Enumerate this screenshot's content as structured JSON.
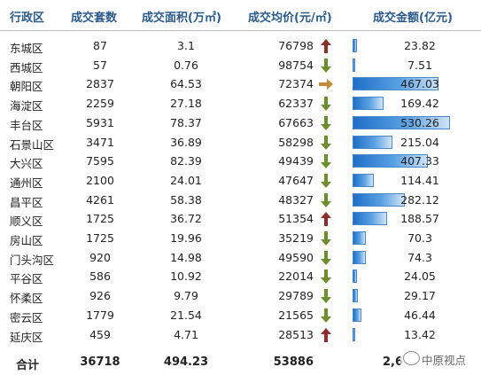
{
  "header": {
    "district": "行政区",
    "count": "成交套数",
    "area": "成交面积(万㎡)",
    "price": "成交均价(元/㎡)",
    "amount": "成交金额(亿元)"
  },
  "colors": {
    "up": "#8b2f2f",
    "down": "#6b8e2e",
    "flat": "#c68a3a",
    "bar": "#1f6fc7"
  },
  "scale_max_amount": 600,
  "rows": [
    {
      "district": "东城区",
      "count": "87",
      "area": "3.1",
      "price": "76798",
      "trend": "up",
      "amount": "23.82"
    },
    {
      "district": "西城区",
      "count": "57",
      "area": "0.76",
      "price": "98754",
      "trend": "down",
      "amount": "7.51"
    },
    {
      "district": "朝阳区",
      "count": "2837",
      "area": "64.53",
      "price": "72374",
      "trend": "flat",
      "amount": "467.03"
    },
    {
      "district": "海淀区",
      "count": "2259",
      "area": "27.18",
      "price": "62337",
      "trend": "down",
      "amount": "169.42"
    },
    {
      "district": "丰台区",
      "count": "5931",
      "area": "78.37",
      "price": "67663",
      "trend": "down",
      "amount": "530.26"
    },
    {
      "district": "石景山区",
      "count": "3471",
      "area": "36.89",
      "price": "58298",
      "trend": "down",
      "amount": "215.04"
    },
    {
      "district": "大兴区",
      "count": "7595",
      "area": "82.39",
      "price": "49439",
      "trend": "down",
      "amount": "407.33"
    },
    {
      "district": "通州区",
      "count": "2100",
      "area": "24.01",
      "price": "47647",
      "trend": "down",
      "amount": "114.41"
    },
    {
      "district": "昌平区",
      "count": "4261",
      "area": "58.38",
      "price": "48327",
      "trend": "down",
      "amount": "282.12"
    },
    {
      "district": "顺义区",
      "count": "1725",
      "area": "36.72",
      "price": "51354",
      "trend": "up",
      "amount": "188.57"
    },
    {
      "district": "房山区",
      "count": "1725",
      "area": "19.96",
      "price": "35219",
      "trend": "down",
      "amount": "70.3"
    },
    {
      "district": "门头沟区",
      "count": "920",
      "area": "14.98",
      "price": "49590",
      "trend": "down",
      "amount": "74.3"
    },
    {
      "district": "平谷区",
      "count": "586",
      "area": "10.92",
      "price": "22014",
      "trend": "down",
      "amount": "24.05"
    },
    {
      "district": "怀柔区",
      "count": "926",
      "area": "9.79",
      "price": "29789",
      "trend": "down",
      "amount": "29.17"
    },
    {
      "district": "密云区",
      "count": "1779",
      "area": "21.54",
      "price": "21565",
      "trend": "down",
      "amount": "46.44"
    },
    {
      "district": "延庆区",
      "count": "459",
      "area": "4.71",
      "price": "28513",
      "trend": "up",
      "amount": "13.42"
    }
  ],
  "total": {
    "label": "合计",
    "count": "36718",
    "area": "494.23",
    "price": "53886",
    "amount": "2,6"
  },
  "watermark": {
    "text": "中原视点",
    "icon": "wechat-icon"
  }
}
